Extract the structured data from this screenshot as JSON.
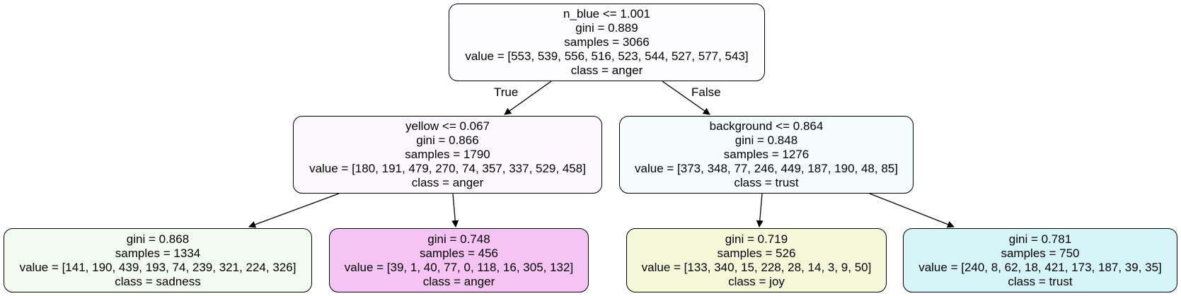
{
  "tree": {
    "nodes": [
      {
        "id": "n0",
        "lines": [
          "n_blue <= 1.001",
          "gini = 0.889",
          "samples = 3066",
          "value = [553, 539, 556, 516, 523, 544, 527, 577, 543]",
          "class = anger"
        ],
        "fill": "#fdfcfe"
      },
      {
        "id": "n1",
        "lines": [
          "yellow <= 0.067",
          "gini = 0.866",
          "samples = 1790",
          "value = [180, 191, 479, 270, 74, 357, 337, 529, 458]",
          "class = anger"
        ],
        "fill": "#fcf9fd"
      },
      {
        "id": "n2",
        "lines": [
          "background <= 0.864",
          "gini = 0.848",
          "samples = 1276",
          "value = [373, 348, 77, 246, 449, 187, 190, 48, 85]",
          "class = trust"
        ],
        "fill": "#f4fcfd"
      },
      {
        "id": "n3",
        "lines": [
          "gini = 0.868",
          "samples = 1334",
          "value = [141, 190, 439, 193, 74, 239, 321, 224, 326]",
          "class = sadness"
        ],
        "fill": "#f4fbf1"
      },
      {
        "id": "n4",
        "lines": [
          "gini = 0.748",
          "samples = 456",
          "value = [39, 1, 40, 77, 0, 118, 16, 305, 132]",
          "class = anger"
        ],
        "fill": "#f5c4f2"
      },
      {
        "id": "n5",
        "lines": [
          "gini = 0.719",
          "samples = 526",
          "value = [133, 340, 15, 228, 28, 14, 3, 9, 50]",
          "class = joy"
        ],
        "fill": "#f6f9d9"
      },
      {
        "id": "n6",
        "lines": [
          "gini = 0.781",
          "samples = 750",
          "value = [240, 8, 62, 18, 421, 173, 187, 39, 35]",
          "class = trust"
        ],
        "fill": "#d6f5f9"
      }
    ],
    "edges": [
      {
        "from": "n0",
        "to": "n1"
      },
      {
        "from": "n0",
        "to": "n2"
      },
      {
        "from": "n1",
        "to": "n3"
      },
      {
        "from": "n1",
        "to": "n4"
      },
      {
        "from": "n2",
        "to": "n5"
      },
      {
        "from": "n2",
        "to": "n6"
      }
    ],
    "edge_labels": {
      "true": "True",
      "false": "False"
    }
  }
}
